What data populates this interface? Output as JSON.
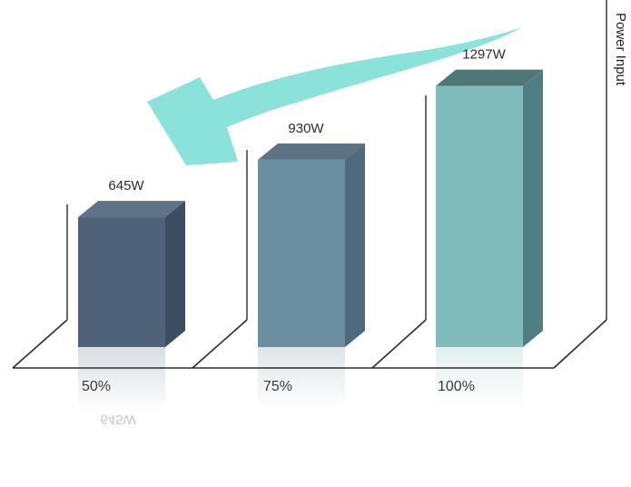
{
  "chart_data": {
    "type": "bar",
    "categories": [
      "50%",
      "75%",
      "100%"
    ],
    "values": [
      645,
      930,
      1297
    ],
    "value_labels": [
      "645W",
      "930W",
      "1297W"
    ],
    "reflection_label": "645W",
    "title": "",
    "xlabel": "",
    "ylabel": "Power Input",
    "unit": "W",
    "ylim": [
      0,
      1350
    ],
    "grid": false,
    "legend": "none",
    "style": "3d-bars-with-reflection",
    "arrow_direction": "left",
    "colors": {
      "bars": [
        {
          "front": "#4f6279",
          "side": "#3c4d61",
          "top": "#5f7286"
        },
        {
          "front": "#6b8ea0",
          "side": "#4f6a7e",
          "top": "#5d7283"
        },
        {
          "front": "#7fbcbb",
          "side": "#4f7f82",
          "top": "#4f7778"
        }
      ],
      "arrow": "#76ddd3",
      "axis": "#2b2b2b"
    }
  }
}
